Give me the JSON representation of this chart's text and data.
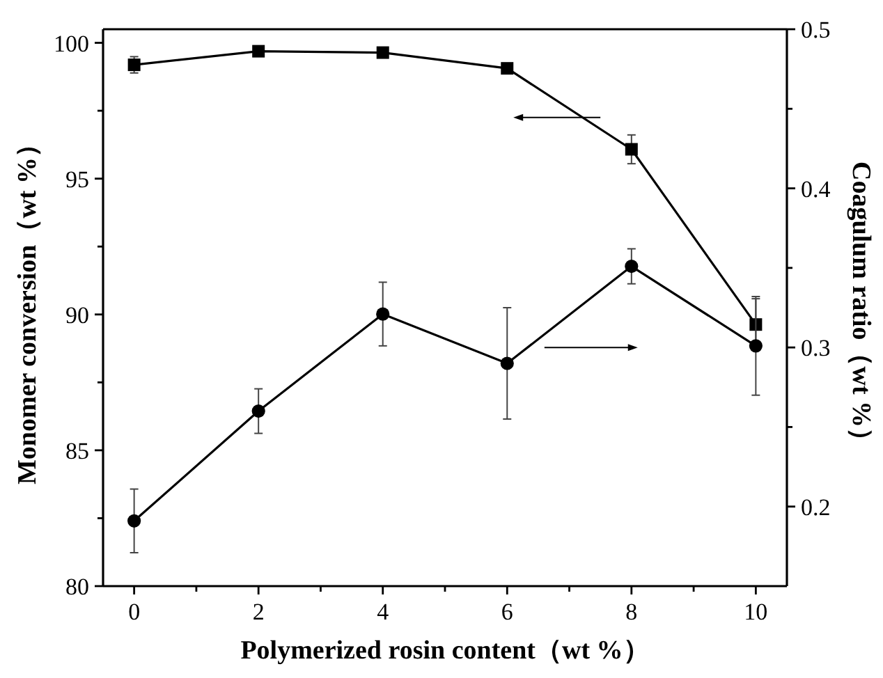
{
  "chart_data": {
    "type": "line",
    "xlabel": "Polymerized rosin content（wt %）",
    "ylabel": "Monomer conversion（wt %）",
    "y2label": "Coagulum ratio（wt %）",
    "x": [
      0,
      2,
      4,
      6,
      8,
      10
    ],
    "xlim": [
      -0.5,
      10.5
    ],
    "xticks": [
      0,
      {
        "value": 1,
        "label": null
      },
      2,
      {
        "value": 3,
        "label": null
      },
      4,
      {
        "value": 5,
        "label": null
      },
      6,
      {
        "value": 7,
        "label": null
      },
      8,
      {
        "value": 9,
        "label": null
      },
      10
    ],
    "ylim": [
      80,
      100.5
    ],
    "yticks": [
      80,
      {
        "value": 82.5,
        "label": null
      },
      85,
      {
        "value": 87.5,
        "label": null
      },
      90,
      {
        "value": 92.5,
        "label": null
      },
      95,
      {
        "value": 97.5,
        "label": null
      },
      100
    ],
    "y2lim": [
      0.15,
      0.5
    ],
    "y2ticks": [
      0.2,
      {
        "value": 0.25,
        "label": null
      },
      0.3,
      {
        "value": 0.35,
        "label": null
      },
      0.4,
      {
        "value": 0.45,
        "label": null
      },
      0.5
    ],
    "series": [
      {
        "color": "#000000",
        "marker": "square",
        "values": [
          99.19,
          99.69,
          99.64,
          99.06,
          96.08,
          89.63
        ],
        "errors": [
          0.3,
          0.1,
          0.1,
          0.1,
          0.53,
          0.95
        ]
      },
      {
        "color": "#000000",
        "marker": "circle",
        "axis": "y2",
        "values": [
          0.191,
          0.26,
          0.321,
          0.29,
          0.351,
          0.301
        ],
        "errors": [
          0.02,
          0.014,
          0.02,
          0.035,
          0.011,
          0.031
        ]
      }
    ]
  }
}
